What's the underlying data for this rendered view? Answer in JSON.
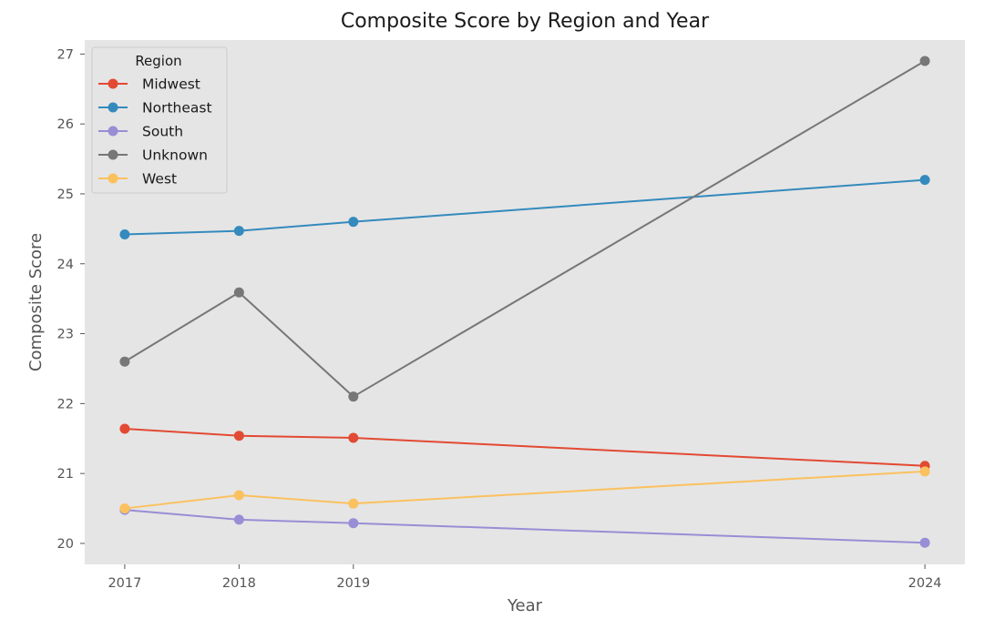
{
  "chart_data": {
    "type": "line",
    "title": "Composite Score by Region and Year",
    "xlabel": "Year",
    "ylabel": "Composite Score",
    "x": [
      2017,
      2018,
      2019,
      2024
    ],
    "x_tick_labels": [
      "2017",
      "2018",
      "2019",
      "2024"
    ],
    "y_ticks": [
      20,
      21,
      22,
      23,
      24,
      25,
      26,
      27
    ],
    "y_tick_labels": [
      "20",
      "21",
      "22",
      "23",
      "24",
      "25",
      "26",
      "27"
    ],
    "xlim": [
      2016.65,
      2024.35
    ],
    "ylim": [
      19.7,
      27.2
    ],
    "grid": false,
    "legend": {
      "title": "Region",
      "position": "top-left"
    },
    "series": [
      {
        "name": "Midwest",
        "color": "#E24A33",
        "values": [
          21.64,
          21.54,
          21.51,
          21.11
        ]
      },
      {
        "name": "Northeast",
        "color": "#348ABD",
        "values": [
          24.42,
          24.47,
          24.6,
          25.2
        ]
      },
      {
        "name": "South",
        "color": "#988ED5",
        "values": [
          20.48,
          20.34,
          20.29,
          20.01
        ]
      },
      {
        "name": "Unknown",
        "color": "#777777",
        "values": [
          22.6,
          23.59,
          22.1,
          26.9
        ]
      },
      {
        "name": "West",
        "color": "#FBC15E",
        "values": [
          20.5,
          20.69,
          20.57,
          21.03
        ]
      }
    ],
    "plot_background": "#E5E5E5"
  }
}
